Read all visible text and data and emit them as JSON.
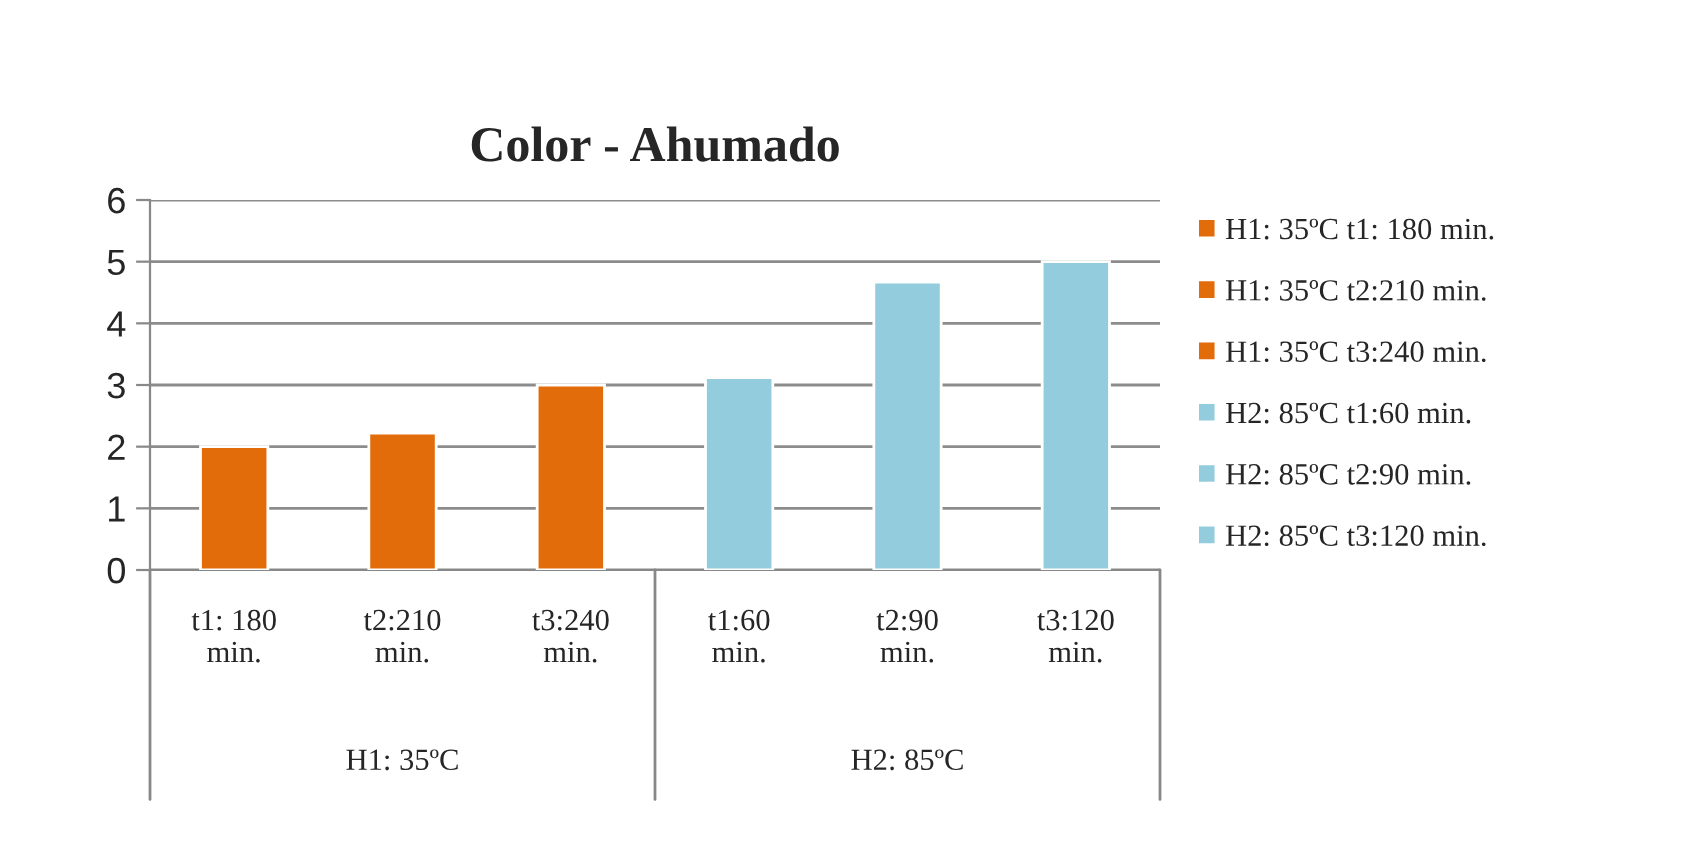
{
  "chart_data": {
    "type": "bar",
    "title": "Color - Ahumado",
    "categories": [
      "t1: 180\nmin.",
      "t2:210\nmin.",
      "t3:240\nmin.",
      "t1:60\nmin.",
      "t2:90\nmin.",
      "t3:120\nmin."
    ],
    "series": [
      {
        "name": "H1: 35ºC t1: 180 min.",
        "color": "#e36c0a",
        "values": [
          2.0,
          null,
          null,
          null,
          null,
          null
        ]
      },
      {
        "name": "H1: 35ºC t2:210 min.",
        "color": "#e36c0a",
        "values": [
          null,
          2.22,
          null,
          null,
          null,
          null
        ]
      },
      {
        "name": "H1: 35ºC t3:240 min.",
        "color": "#e36c0a",
        "values": [
          null,
          null,
          3.0,
          null,
          null,
          null
        ]
      },
      {
        "name": "H2: 85ºC t1:60 min.",
        "color": "#93cddd",
        "values": [
          null,
          null,
          null,
          3.12,
          null,
          null
        ]
      },
      {
        "name": "H2: 85ºC t2:90 min.",
        "color": "#93cddd",
        "values": [
          null,
          null,
          null,
          null,
          4.67,
          null
        ]
      },
      {
        "name": "H2: 85ºC t3:120 min.",
        "color": "#93cddd",
        "values": [
          null,
          null,
          null,
          null,
          null,
          5.0
        ]
      }
    ],
    "annotations": [
      "H1: 35ºC",
      "H2: 85ºC"
    ],
    "ylim": [
      0,
      6
    ],
    "yticks": [
      0,
      1,
      2,
      3,
      4,
      5,
      6
    ],
    "grid": "y",
    "legend": "right"
  }
}
